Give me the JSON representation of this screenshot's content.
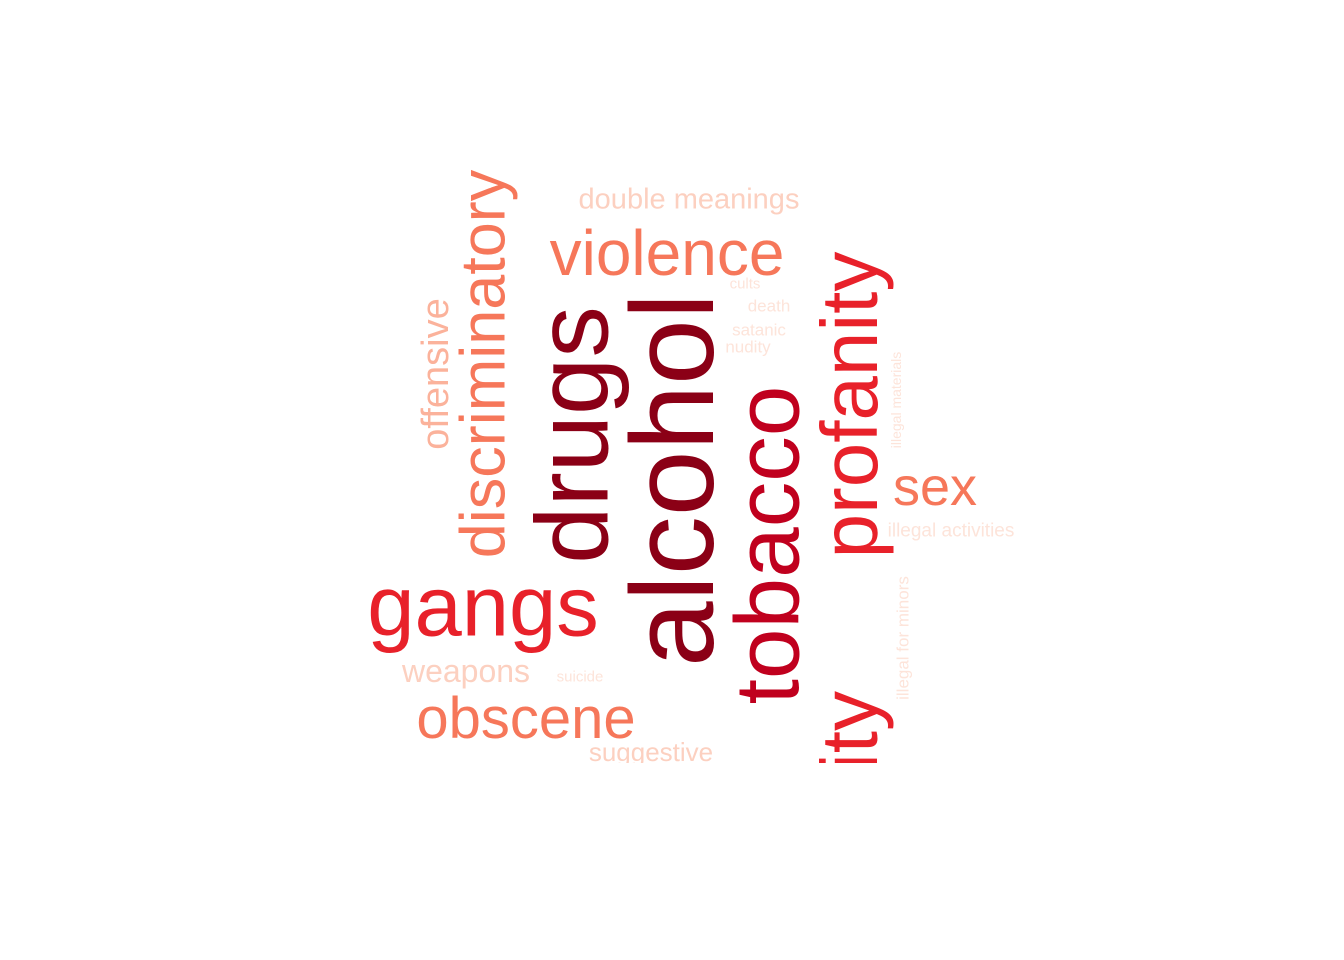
{
  "words": [
    {
      "text": "alcohol",
      "color": "#8b0016"
    },
    {
      "text": "drugs",
      "color": "#8b0016"
    },
    {
      "text": "tobacco",
      "color": "#c0001e"
    },
    {
      "text": "vulgarity",
      "color": "#e8212a"
    },
    {
      "text": "profanity",
      "color": "#e8212a"
    },
    {
      "text": "gangs",
      "color": "#e8212a"
    },
    {
      "text": "discriminatory",
      "color": "#f6775a"
    },
    {
      "text": "violence",
      "color": "#f6775a"
    },
    {
      "text": "obscene",
      "color": "#f6775a"
    },
    {
      "text": "sex",
      "color": "#f6775a"
    },
    {
      "text": "offensive",
      "color": "#fbb29b"
    },
    {
      "text": "double meanings",
      "color": "#fcd0c0"
    },
    {
      "text": "weapons",
      "color": "#fcd0c0"
    },
    {
      "text": "suggestive",
      "color": "#fcd0c0"
    },
    {
      "text": "illegal activities",
      "color": "#fde4da"
    },
    {
      "text": "illegal for minors",
      "color": "#fde4da"
    },
    {
      "text": "illegal materials",
      "color": "#fde4da"
    },
    {
      "text": "suicide",
      "color": "#fde4da"
    },
    {
      "text": "cults",
      "color": "#fde4da"
    },
    {
      "text": "death",
      "color": "#fde4da"
    },
    {
      "text": "satanic",
      "color": "#fde4da"
    },
    {
      "text": "nudity",
      "color": "#fde4da"
    }
  ]
}
